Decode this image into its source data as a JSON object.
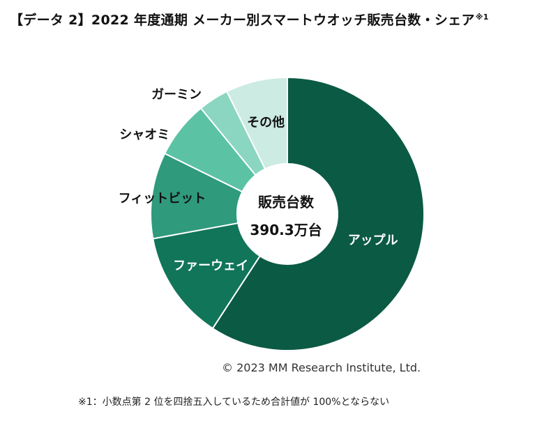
{
  "header": {
    "title": "【データ 2】2022 年度通期 メーカー別スマートウオッチ販売台数・シェア",
    "title_mark": "※1"
  },
  "chart_data": {
    "type": "pie",
    "title": "【データ 2】2022 年度通期 メーカー別スマートウオッチ販売台数・シェア",
    "center_title": "販売台数",
    "center_value": "390.3万台",
    "categories": [
      "アップル",
      "ファーウェイ",
      "フィットビット",
      "シャオミ",
      "ガーミン",
      "その他"
    ],
    "values": [
      59.2,
      12.9,
      10.2,
      6.8,
      3.6,
      7.3
    ],
    "colors": [
      "#0b5a43",
      "#11755a",
      "#2f9a7c",
      "#5cc2a4",
      "#8bd6c0",
      "#ccebe2"
    ],
    "legend": "none"
  },
  "footer": {
    "copyright": "© 2023 MM Research Institute, Ltd.",
    "note": "※1：小数点第 2 位を四捨五入しているため合計値が 100%とならない"
  }
}
